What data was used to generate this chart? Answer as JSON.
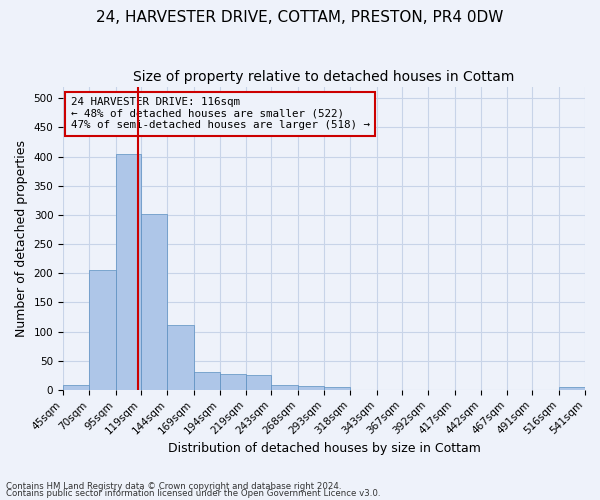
{
  "title1": "24, HARVESTER DRIVE, COTTAM, PRESTON, PR4 0DW",
  "title2": "Size of property relative to detached houses in Cottam",
  "xlabel": "Distribution of detached houses by size in Cottam",
  "ylabel": "Number of detached properties",
  "footnote1": "Contains HM Land Registry data © Crown copyright and database right 2024.",
  "footnote2": "Contains public sector information licensed under the Open Government Licence v3.0.",
  "bin_edges": [
    45,
    70,
    95,
    119,
    144,
    169,
    194,
    219,
    243,
    268,
    293,
    318,
    343,
    367,
    392,
    417,
    442,
    467,
    491,
    516,
    541
  ],
  "bin_labels": [
    "45sqm",
    "70sqm",
    "95sqm",
    "119sqm",
    "144sqm",
    "169sqm",
    "194sqm",
    "219sqm",
    "243sqm",
    "268sqm",
    "293sqm",
    "318sqm",
    "343sqm",
    "367sqm",
    "392sqm",
    "417sqm",
    "442sqm",
    "467sqm",
    "491sqm",
    "516sqm",
    "541sqm"
  ],
  "counts": [
    8,
    205,
    405,
    302,
    112,
    30,
    27,
    25,
    8,
    7,
    5,
    0,
    0,
    0,
    0,
    0,
    0,
    0,
    0,
    5
  ],
  "bar_color": "#aec6e8",
  "bar_edge_color": "#5a8fc0",
  "vline_x": 116,
  "vline_color": "#cc0000",
  "annotation_line1": "24 HARVESTER DRIVE: 116sqm",
  "annotation_line2": "← 48% of detached houses are smaller (522)",
  "annotation_line3": "47% of semi-detached houses are larger (518) →",
  "annotation_box_color": "#cc0000",
  "ylim": [
    0,
    520
  ],
  "yticks": [
    0,
    50,
    100,
    150,
    200,
    250,
    300,
    350,
    400,
    450,
    500
  ],
  "grid_color": "#c8d4e8",
  "background_color": "#eef2fa",
  "title1_fontsize": 11,
  "title2_fontsize": 10,
  "xlabel_fontsize": 9,
  "ylabel_fontsize": 9,
  "tick_fontsize": 7.5
}
